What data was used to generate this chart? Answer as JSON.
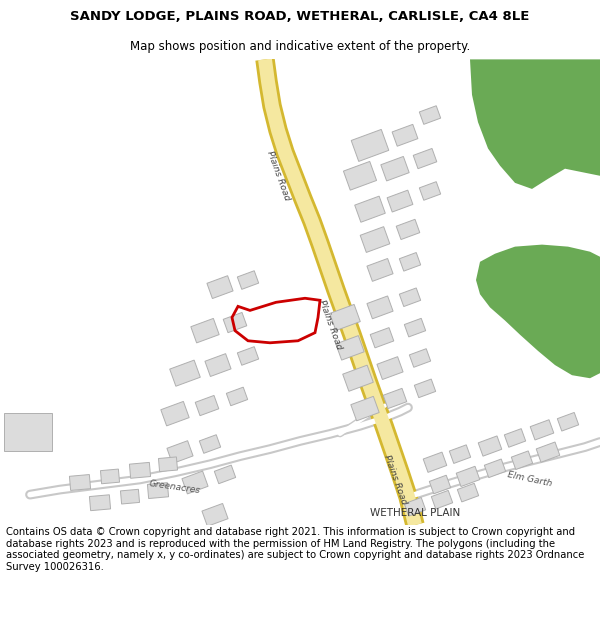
{
  "title": "SANDY LODGE, PLAINS ROAD, WETHERAL, CARLISLE, CA4 8LE",
  "subtitle": "Map shows position and indicative extent of the property.",
  "footer": "Contains OS data © Crown copyright and database right 2021. This information is subject to Crown copyright and database rights 2023 and is reproduced with the permission of HM Land Registry. The polygons (including the associated geometry, namely x, y co-ordinates) are subject to Crown copyright and database rights 2023 Ordnance Survey 100026316.",
  "bg_color": "#f2f2f2",
  "road_fill": "#f5e8a0",
  "road_border": "#d4b830",
  "road_minor_fill": "#ffffff",
  "road_minor_border": "#c8c8c8",
  "building_fill": "#dcdcdc",
  "building_border": "#b0b0b0",
  "green_fill": "#6aaa55",
  "red_color": "#cc0000",
  "title_fontsize": 9.5,
  "subtitle_fontsize": 8.5,
  "footer_fontsize": 7.2,
  "road_label": "Plains Road",
  "label_greenacres": "Greenacres",
  "label_wetheral": "WETHERAL PLAIN",
  "label_elm_garth": "Elm Garth"
}
